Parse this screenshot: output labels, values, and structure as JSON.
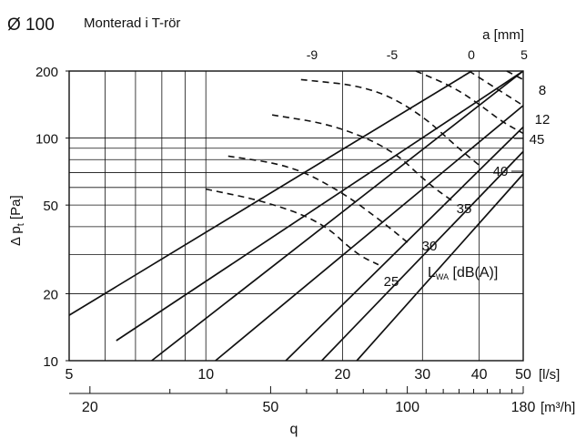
{
  "header": {
    "diameter": "Ø 100",
    "subtitle": "Monterad i T-rör"
  },
  "chart_data": {
    "type": "line",
    "title": "Monterad i T-rör",
    "x_scale": "log",
    "y_scale": "log",
    "xlim": [
      5,
      50
    ],
    "ylim": [
      10,
      200
    ],
    "xlabel": "q",
    "ylabel": "Δ pt [Pa]",
    "x_unit": "[l/s]",
    "x_secondary_unit": "[m³/h]",
    "y_ticks": [
      10,
      20,
      50,
      100,
      200
    ],
    "x_ticks": [
      5,
      10,
      20,
      30,
      40,
      50
    ],
    "x_secondary_ticks": [
      20,
      50,
      100,
      180
    ],
    "grid": true,
    "damper_axis_label": "a [mm]",
    "damper_series": [
      {
        "name": "-9",
        "x": [
          5,
          38.5
        ],
        "y": [
          16,
          200
        ]
      },
      {
        "name": "",
        "x": [
          6.35,
          50
        ],
        "y": [
          12.3,
          200
        ]
      },
      {
        "name": "-5",
        "x": [
          7.6,
          50
        ],
        "y": [
          10,
          200
        ]
      },
      {
        "name": "",
        "x": [
          10.5,
          50
        ],
        "y": [
          10,
          140
        ]
      },
      {
        "name": "",
        "x": [
          15,
          50
        ],
        "y": [
          10,
          112
        ]
      },
      {
        "name": "0",
        "x": [
          18,
          50
        ],
        "y": [
          10,
          87
        ]
      },
      {
        "name": "5",
        "x": [
          21.5,
          50
        ],
        "y": [
          10,
          69
        ]
      }
    ],
    "damper_top_labels": [
      "-9",
      "-5",
      "0",
      "5"
    ],
    "sound_series_label": "L",
    "sound_series_label_sub": "WA",
    "sound_series_label_unit": " [dB(A)]",
    "sound_series": [
      {
        "name": "25",
        "x": [
          10,
          13.5,
          18,
          21.5,
          24
        ],
        "y": [
          59,
          52,
          42,
          30,
          27
        ]
      },
      {
        "name": "30",
        "x": [
          11.2,
          15.5,
          20,
          24.5,
          27.8
        ],
        "y": [
          83,
          75,
          57,
          42,
          34
        ]
      },
      {
        "name": "35",
        "x": [
          14,
          19,
          25.5,
          31,
          35
        ],
        "y": [
          127,
          115,
          90,
          62,
          52
        ]
      },
      {
        "name": "40",
        "x": [
          16.2,
          23,
          29.5,
          36,
          40.5
        ],
        "y": [
          183,
          170,
          130,
          90,
          74
        ]
      },
      {
        "name": "45",
        "x": [
          29,
          35,
          40,
          45,
          50
        ],
        "y": [
          200,
          170,
          142,
          118,
          105
        ]
      },
      {
        "name": "12",
        "x": [
          38,
          44,
          50
        ],
        "y": [
          200,
          165,
          140
        ]
      },
      {
        "name": "8",
        "x": [
          46,
          50
        ],
        "y": [
          200,
          183
        ]
      }
    ]
  }
}
